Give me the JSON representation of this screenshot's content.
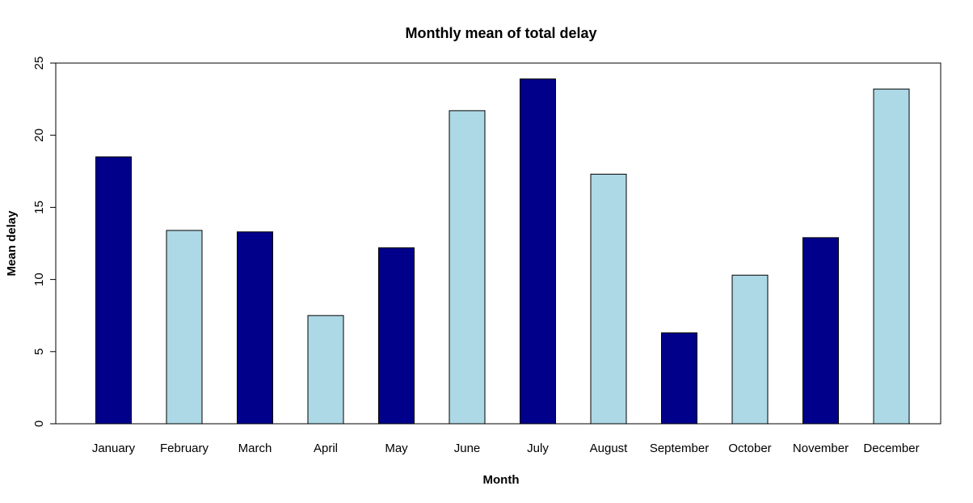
{
  "chart_data": {
    "type": "bar",
    "title": "Monthly mean of total delay",
    "xlabel": "Month",
    "ylabel": "Mean delay",
    "categories": [
      "January",
      "February",
      "March",
      "April",
      "May",
      "June",
      "July",
      "August",
      "September",
      "October",
      "November",
      "December"
    ],
    "values": [
      18.5,
      13.4,
      13.3,
      7.5,
      12.2,
      21.7,
      23.9,
      17.3,
      6.3,
      10.3,
      12.9,
      23.2
    ],
    "bar_colors": [
      "#00008B",
      "#ADD8E6",
      "#00008B",
      "#ADD8E6",
      "#00008B",
      "#ADD8E6",
      "#00008B",
      "#ADD8E6",
      "#00008B",
      "#ADD8E6",
      "#00008B",
      "#ADD8E6"
    ],
    "ylim": [
      0,
      25
    ],
    "yticks": [
      "0",
      "5",
      "10",
      "15",
      "20",
      "25"
    ],
    "grid": false,
    "legend": "none"
  }
}
